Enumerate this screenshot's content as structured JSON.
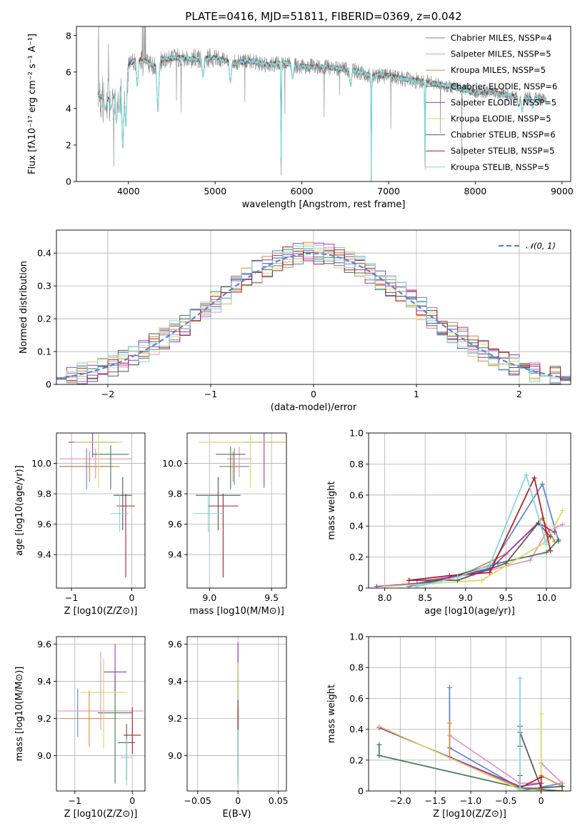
{
  "colors": [
    "#5a83d6",
    "#e88fbf",
    "#d98a3b",
    "#3f7a54",
    "#9b36bf",
    "#d8d860",
    "#555555",
    "#b01c22",
    "#7fd8dc"
  ],
  "spectrum_colors": [
    "#8a8a8a",
    "#7fd8dc",
    "#b01c22",
    "#d98a3b",
    "#d8d860"
  ],
  "chart_data": [
    {
      "type": "line",
      "title": "PLATE=0416, MJD=51811, FIBERID=0369, z=0.042",
      "xlabel": "wavelength [Angstrom, rest frame]",
      "ylabel": "Flux [fλ10⁻¹⁷ erg cm⁻² s⁻¹ A⁻¹]",
      "xlim": [
        3400,
        9100
      ],
      "ylim": [
        0,
        8.5
      ],
      "xticks": [
        4000,
        5000,
        6000,
        7000,
        8000,
        9000
      ],
      "yticks": [
        0,
        2,
        4,
        6,
        8
      ],
      "legend_position": "top-right",
      "legend": [
        "Chabrier MILES, NSSP=4",
        "Salpeter MILES, NSSP=5",
        "Kroupa MILES, NSSP=5",
        "Chabrier ELODIE, NSSP=6",
        "Salpeter ELODIE, NSSP=5",
        "Kroupa ELODIE, NSSP=5",
        "Chabrier STELIB, NSSP=6",
        "Salpeter STELIB, NSSP=5",
        "Kroupa STELIB, NSSP=5"
      ],
      "continuum": {
        "x": [
          3650,
          3700,
          3800,
          3900,
          4000,
          4100,
          4200,
          4300,
          4400,
          4600,
          4800,
          5000,
          5200,
          5400,
          5600,
          5800,
          6000,
          6200,
          6400,
          6600,
          6800,
          7000,
          7200,
          7400,
          7600,
          7800,
          8000,
          8200,
          8400,
          8600,
          8800
        ],
        "y": [
          4.8,
          4.6,
          4.5,
          5.2,
          6.4,
          6.7,
          6.6,
          6.3,
          6.7,
          6.8,
          6.7,
          6.8,
          6.5,
          6.6,
          6.4,
          6.5,
          6.3,
          6.3,
          6.2,
          6.1,
          5.8,
          5.8,
          5.6,
          5.5,
          5.3,
          5.1,
          4.9,
          4.9,
          4.7,
          4.6,
          4.5
        ]
      },
      "dips": [
        {
          "x": 3733,
          "y": 4.0
        },
        {
          "x": 3800,
          "y": 4.0
        },
        {
          "x": 3860,
          "y": 3.2
        },
        {
          "x": 3890,
          "y": 3.8
        },
        {
          "x": 3935,
          "y": 1.8
        },
        {
          "x": 3970,
          "y": 3.0
        },
        {
          "x": 4102,
          "y": 5.2
        },
        {
          "x": 4340,
          "y": 3.8
        },
        {
          "x": 4861,
          "y": 5.7
        },
        {
          "x": 5175,
          "y": 5.4
        },
        {
          "x": 5760,
          "y": 0.0
        },
        {
          "x": 5893,
          "y": 5.6
        },
        {
          "x": 6563,
          "y": 5.2
        },
        {
          "x": 6800,
          "y": 0.0
        },
        {
          "x": 7420,
          "y": 0.4
        },
        {
          "x": 8500,
          "y": 4.1
        },
        {
          "x": 8542,
          "y": 3.8
        },
        {
          "x": 8662,
          "y": 4.0
        }
      ]
    },
    {
      "type": "histogram",
      "xlabel": "(data-model)/error",
      "ylabel": "Normed distribution",
      "xlim": [
        -2.5,
        2.5
      ],
      "ylim": [
        0,
        0.47
      ],
      "xticks": [
        -2,
        -1,
        0,
        1,
        2
      ],
      "yticks": [
        0.0,
        0.1,
        0.2,
        0.3,
        0.4
      ],
      "legend": "𝒩(0, 1)",
      "legend_position": "top-right",
      "bin_width": 0.1,
      "reference": {
        "type": "normal",
        "mean": 0,
        "sigma": 1,
        "color": "#5a83d6",
        "dashed": true
      }
    },
    {
      "type": "scatter",
      "xlabel": "Z [log10(Z/Z⊙)]",
      "ylabel": "age  [log10(age/yr)]",
      "xlim": [
        -1.25,
        0.22
      ],
      "ylim": [
        9.18,
        10.2
      ],
      "xticks": [
        -1,
        0
      ],
      "yticks": [
        9.4,
        9.6,
        9.8,
        10.0
      ],
      "points": [
        {
          "x": -0.75,
          "y": 9.98,
          "xerr": 0.45,
          "yerr": [
            0.15,
            0.12
          ]
        },
        {
          "x": -0.6,
          "y": 10.03,
          "xerr": 0.6,
          "yerr": [
            0.13,
            0.07
          ]
        },
        {
          "x": -0.7,
          "y": 9.98,
          "xerr": 0.5,
          "yerr": [
            0.1,
            0.1
          ]
        },
        {
          "x": -0.35,
          "y": 10.06,
          "xerr": 0.3,
          "yerr": [
            0.23,
            0.06
          ]
        },
        {
          "x": -0.65,
          "y": 10.14,
          "xerr": 0.4,
          "yerr": [
            0.1,
            0.06
          ]
        },
        {
          "x": -0.55,
          "y": 10.14,
          "xerr": 0.4,
          "yerr": [
            0.3,
            0.06
          ]
        },
        {
          "x": -0.15,
          "y": 9.79,
          "xerr": 0.15,
          "yerr": [
            0.23,
            0.12
          ]
        },
        {
          "x": -0.1,
          "y": 9.72,
          "xerr": 0.15,
          "yerr": [
            0.47,
            0.08
          ]
        },
        {
          "x": -0.2,
          "y": 9.67,
          "xerr": 0.15,
          "yerr": [
            0.12,
            0.12
          ]
        }
      ]
    },
    {
      "type": "scatter",
      "xlabel": "mass [log10(M/M⊙)]",
      "ylabel": "",
      "xlim": [
        8.82,
        9.62
      ],
      "ylim": [
        9.18,
        10.2
      ],
      "xticks": [
        9.0,
        9.5
      ],
      "yticks": [
        9.4,
        9.6,
        9.8,
        10.0
      ],
      "points": [
        {
          "x": 9.2,
          "y": 9.98,
          "xerr": 0.12,
          "yerr": [
            0.12,
            0.12
          ]
        },
        {
          "x": 9.24,
          "y": 10.03,
          "xerr": 0.1,
          "yerr": [
            0.12,
            0.08
          ]
        },
        {
          "x": 9.19,
          "y": 9.98,
          "xerr": 0.05,
          "yerr": [
            0.1,
            0.1
          ]
        },
        {
          "x": 9.17,
          "y": 10.06,
          "xerr": 0.12,
          "yerr": [
            0.23,
            0.05
          ]
        },
        {
          "x": 9.44,
          "y": 10.14,
          "xerr": 0.16,
          "yerr": [
            0.3,
            0.06
          ]
        },
        {
          "x": 9.33,
          "y": 10.14,
          "xerr": 0.42,
          "yerr": [
            0.3,
            0.05
          ]
        },
        {
          "x": 9.07,
          "y": 9.79,
          "xerr": 0.18,
          "yerr": [
            0.23,
            0.12
          ]
        },
        {
          "x": 9.11,
          "y": 9.72,
          "xerr": 0.12,
          "yerr": [
            0.47,
            0.08
          ]
        },
        {
          "x": 8.99,
          "y": 9.67,
          "xerr": 0.12,
          "yerr": [
            0.12,
            0.12
          ]
        }
      ]
    },
    {
      "type": "line",
      "xlabel": "age  [log10(age/yr)]",
      "ylabel": "mass weight",
      "xlim": [
        7.8,
        10.3
      ],
      "ylim": [
        0,
        1.0
      ],
      "xticks": [
        8.0,
        8.5,
        9.0,
        9.5,
        10.0
      ],
      "yticks": [
        0.0,
        0.2,
        0.4,
        0.6,
        0.8,
        1.0
      ],
      "series": [
        {
          "x": [
            8.3,
            8.7,
            9.3,
            9.95,
            10.15
          ],
          "y": [
            0.01,
            0.05,
            0.13,
            0.67,
            0.3
          ]
        },
        {
          "x": [
            8.5,
            9.1,
            9.8,
            10.0,
            10.2
          ],
          "y": [
            0.05,
            0.09,
            0.18,
            0.36,
            0.41
          ]
        },
        {
          "x": [
            8.3,
            8.9,
            9.5,
            9.95,
            10.1
          ],
          "y": [
            0.02,
            0.07,
            0.22,
            0.45,
            0.3
          ]
        },
        {
          "x": [
            8.0,
            8.6,
            9.4,
            10.0,
            10.15
          ],
          "y": [
            0.01,
            0.04,
            0.16,
            0.23,
            0.31
          ]
        },
        {
          "x": [
            7.9,
            8.4,
            9.3,
            9.9,
            10.1
          ],
          "y": [
            0.01,
            0.03,
            0.12,
            0.42,
            0.36
          ]
        },
        {
          "x": [
            8.0,
            9.2,
            10.0,
            10.2
          ],
          "y": [
            0.01,
            0.05,
            0.3,
            0.5
          ]
        },
        {
          "x": [
            8.3,
            8.9,
            9.5,
            9.9,
            10.05
          ],
          "y": [
            0.05,
            0.05,
            0.16,
            0.42,
            0.33
          ]
        },
        {
          "x": [
            8.3,
            8.8,
            9.3,
            9.85,
            10.05
          ],
          "y": [
            0.05,
            0.08,
            0.1,
            0.71,
            0.24
          ]
        },
        {
          "x": [
            8.4,
            8.9,
            9.3,
            9.75,
            10.0
          ],
          "y": [
            0.01,
            0.07,
            0.15,
            0.73,
            0.28
          ]
        }
      ]
    },
    {
      "type": "scatter",
      "xlabel": "Z [log10(Z/Z⊙)]",
      "ylabel": "mass [log10(M/M⊙)]",
      "xlim": [
        -1.32,
        0.22
      ],
      "ylim": [
        8.81,
        9.64
      ],
      "xticks": [
        -1,
        0
      ],
      "yticks": [
        9.0,
        9.2,
        9.4,
        9.6
      ],
      "points": [
        {
          "x": -0.95,
          "y": 9.2,
          "xerr": 0.3,
          "yerr": [
            0.1,
            0.16
          ]
        },
        {
          "x": -0.55,
          "y": 9.24,
          "xerr": 0.75,
          "yerr": [
            0.1,
            0.32
          ]
        },
        {
          "x": -0.75,
          "y": 9.2,
          "xerr": 0.5,
          "yerr": [
            0.15,
            0.15
          ]
        },
        {
          "x": -0.3,
          "y": 9.23,
          "xerr": 0.3,
          "yerr": [
            0.38,
            0.2
          ]
        },
        {
          "x": -0.3,
          "y": 9.45,
          "xerr": 0.2,
          "yerr": [
            0.1,
            0.15
          ]
        },
        {
          "x": -0.5,
          "y": 9.34,
          "xerr": 0.4,
          "yerr": [
            0.3,
            0.18
          ]
        },
        {
          "x": -0.1,
          "y": 9.07,
          "xerr": 0.15,
          "yerr": [
            0.2,
            0.1
          ]
        },
        {
          "x": 0.0,
          "y": 9.11,
          "xerr": 0.15,
          "yerr": [
            0.1,
            0.15
          ]
        },
        {
          "x": -0.1,
          "y": 8.99,
          "xerr": 0.1,
          "yerr": [
            0.15,
            0.1
          ]
        }
      ]
    },
    {
      "type": "scatter",
      "xlabel": "E(B-V)",
      "ylabel": "",
      "xlim": [
        -0.063,
        0.06
      ],
      "ylim": [
        8.81,
        9.64
      ],
      "xticks": [
        -0.05,
        0.0,
        0.05
      ],
      "yticks": [
        9.0,
        9.2,
        9.4,
        9.6
      ],
      "points": [
        {
          "x": 0.0,
          "y": 9.2,
          "yerr": [
            0.35,
            0.3
          ]
        },
        {
          "x": 0.0,
          "y": 9.25,
          "yerr": [
            0.3,
            0.35
          ]
        },
        {
          "x": 0.0,
          "y": 9.24,
          "yerr": [
            0.3,
            0.3
          ]
        },
        {
          "x": 0.0,
          "y": 9.23,
          "yerr": [
            0.35,
            0.2
          ]
        },
        {
          "x": 0.0,
          "y": 9.45,
          "yerr": [
            0.2,
            0.16
          ]
        },
        {
          "x": 0.0,
          "y": 9.3,
          "yerr": [
            0.2,
            0.2
          ]
        },
        {
          "x": 0.0,
          "y": 9.1,
          "yerr": [
            0.2,
            0.2
          ]
        },
        {
          "x": 0.0,
          "y": 9.2,
          "yerr": [
            0.1,
            0.06
          ]
        },
        {
          "x": 0.0,
          "y": 8.99,
          "yerr": [
            0.15,
            0.15
          ]
        }
      ]
    },
    {
      "type": "line",
      "xlabel": "Z [log10(Z/Z⊙)]",
      "ylabel": "mass weight",
      "xlim": [
        -2.45,
        0.42
      ],
      "ylim": [
        0,
        1.0
      ],
      "xticks": [
        -2.0,
        -1.5,
        -1.0,
        -0.5,
        0.0
      ],
      "yticks": [
        0.0,
        0.2,
        0.4,
        0.6,
        0.8,
        1.0
      ],
      "series": [
        {
          "x": [
            -1.3,
            -1.3,
            -0.3,
            -0.3,
            0.3
          ],
          "y": [
            0.67,
            0.28,
            0.02,
            0.0,
            0.05
          ]
        },
        {
          "x": [
            -1.3,
            -0.3,
            0.0,
            0.0,
            0.3
          ],
          "y": [
            0.36,
            0.05,
            0.05,
            0.18,
            0.05
          ]
        },
        {
          "x": [
            -1.3,
            -1.3,
            -0.3,
            0.0,
            0.0,
            0.3
          ],
          "y": [
            0.44,
            0.22,
            0.02,
            0.02,
            0.1,
            0.03
          ]
        },
        {
          "x": [
            -2.3,
            -2.3,
            -0.3,
            0.3,
            0.3
          ],
          "y": [
            0.3,
            0.23,
            0.02,
            0.0,
            0.03
          ]
        },
        {
          "x": [
            -2.3,
            -0.3,
            0.0
          ],
          "y": [
            0.41,
            0.03,
            0.05
          ]
        },
        {
          "x": [
            -2.3,
            -0.3,
            -0.3,
            0.0,
            0.0
          ],
          "y": [
            0.42,
            0.01,
            0.0,
            0.0,
            0.5
          ]
        },
        {
          "x": [
            -0.3,
            -0.3,
            -0.3,
            0.0,
            0.3
          ],
          "y": [
            0.42,
            0.29,
            0.38,
            0.02,
            0.03
          ]
        },
        {
          "x": [
            -0.3,
            -0.3,
            0.0,
            0.0
          ],
          "y": [
            0.1,
            0.02,
            0.09,
            0.02
          ]
        },
        {
          "x": [
            -0.3,
            -0.3,
            -0.3
          ],
          "y": [
            0.73,
            0.0,
            0.02
          ]
        }
      ]
    }
  ]
}
